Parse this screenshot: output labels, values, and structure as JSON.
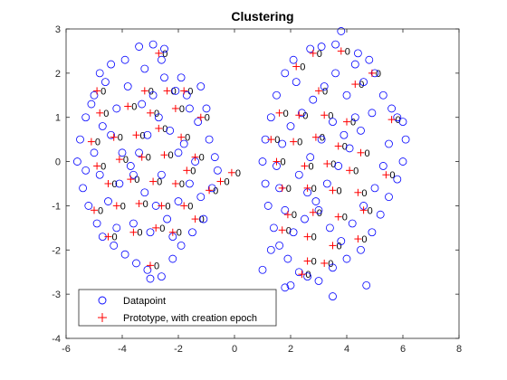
{
  "chart_data": {
    "type": "scatter",
    "title": "Clustering",
    "xlabel": "",
    "ylabel": "",
    "xlim": [
      -6,
      8
    ],
    "ylim": [
      -4,
      3
    ],
    "x_ticks": [
      "-6",
      "-4",
      "-2",
      "0",
      "2",
      "4",
      "6",
      "8"
    ],
    "y_ticks": [
      "-4",
      "-3",
      "-2",
      "-1",
      "0",
      "1",
      "2",
      "3"
    ],
    "grid": false,
    "legend_position": "bottom-left",
    "colors": {
      "datapoint": "#0000ff",
      "prototype": "#ff0000",
      "label": "#000000",
      "axes": "#262626"
    },
    "series": [
      {
        "name": "Datapoint",
        "marker": "circle",
        "points": [
          [
            -3.4,
            2.6
          ],
          [
            -2.9,
            2.65
          ],
          [
            -2.5,
            2.55
          ],
          [
            -2.6,
            2.3
          ],
          [
            -4.8,
            2.0
          ],
          [
            -3.2,
            2.1
          ],
          [
            -1.9,
            1.9
          ],
          [
            -1.7,
            1.5
          ],
          [
            -1.2,
            1.7
          ],
          [
            -4.6,
            1.8
          ],
          [
            -5.0,
            1.5
          ],
          [
            -5.3,
            1.0
          ],
          [
            -5.5,
            0.5
          ],
          [
            -5.6,
            0.0
          ],
          [
            -5.4,
            -0.6
          ],
          [
            -5.2,
            -1.0
          ],
          [
            -4.9,
            -1.4
          ],
          [
            -4.7,
            -1.7
          ],
          [
            -4.3,
            -1.9
          ],
          [
            -3.9,
            -2.1
          ],
          [
            -3.5,
            -2.3
          ],
          [
            -3.1,
            -2.45
          ],
          [
            -2.6,
            -2.6
          ],
          [
            -3.0,
            -2.65
          ],
          [
            -2.2,
            -2.2
          ],
          [
            -1.9,
            -1.9
          ],
          [
            -1.5,
            -1.6
          ],
          [
            -1.1,
            -1.3
          ],
          [
            -0.8,
            -0.6
          ],
          [
            -0.6,
            -0.2
          ],
          [
            -0.9,
            0.5
          ],
          [
            -1.3,
            0.9
          ],
          [
            -1.6,
            1.2
          ],
          [
            -2.1,
            1.6
          ],
          [
            -2.5,
            1.9
          ],
          [
            -3.8,
            1.7
          ],
          [
            -4.2,
            1.2
          ],
          [
            -4.4,
            0.6
          ],
          [
            -4.0,
            0.2
          ],
          [
            -3.6,
            -0.3
          ],
          [
            -3.2,
            -0.7
          ],
          [
            -2.8,
            -1.0
          ],
          [
            -2.4,
            -1.3
          ],
          [
            -2.0,
            -0.9
          ],
          [
            -1.6,
            -0.5
          ],
          [
            -1.4,
            0.0
          ],
          [
            -1.8,
            0.4
          ],
          [
            -2.3,
            0.7
          ],
          [
            -2.7,
            1.0
          ],
          [
            -3.1,
            0.6
          ],
          [
            -3.4,
            0.2
          ],
          [
            -3.7,
            -0.1
          ],
          [
            -4.1,
            -0.5
          ],
          [
            -4.5,
            -0.9
          ],
          [
            -4.8,
            -0.3
          ],
          [
            -5.0,
            0.2
          ],
          [
            -4.7,
            0.8
          ],
          [
            -3.3,
            1.3
          ],
          [
            -2.9,
            1.5
          ],
          [
            -2.0,
            0.2
          ],
          [
            -2.6,
            -0.3
          ],
          [
            -3.0,
            -1.6
          ],
          [
            -3.6,
            -1.4
          ],
          [
            -4.2,
            -1.5
          ],
          [
            -2.2,
            -1.7
          ],
          [
            -1.2,
            -0.8
          ],
          [
            -0.7,
            0.1
          ],
          [
            -1.0,
            1.2
          ],
          [
            -3.9,
            2.3
          ],
          [
            -4.4,
            2.2
          ],
          [
            -5.1,
            1.3
          ],
          [
            -5.3,
            -0.2
          ],
          [
            2.7,
            2.55
          ],
          [
            3.1,
            2.6
          ],
          [
            3.6,
            2.65
          ],
          [
            3.8,
            2.95
          ],
          [
            4.4,
            2.45
          ],
          [
            4.8,
            2.3
          ],
          [
            5.0,
            2.0
          ],
          [
            4.6,
            1.8
          ],
          [
            2.1,
            2.3
          ],
          [
            1.8,
            2.0
          ],
          [
            1.5,
            1.5
          ],
          [
            1.3,
            1.0
          ],
          [
            1.1,
            0.5
          ],
          [
            1.0,
            0.0
          ],
          [
            1.1,
            -0.5
          ],
          [
            1.2,
            -1.0
          ],
          [
            1.4,
            -1.5
          ],
          [
            1.6,
            -1.9
          ],
          [
            1.9,
            -2.2
          ],
          [
            2.3,
            -2.5
          ],
          [
            2.6,
            -2.6
          ],
          [
            2.0,
            -2.8
          ],
          [
            3.0,
            -2.7
          ],
          [
            3.5,
            -2.4
          ],
          [
            4.0,
            -2.2
          ],
          [
            4.5,
            -2.0
          ],
          [
            4.9,
            -1.6
          ],
          [
            5.2,
            -1.2
          ],
          [
            5.5,
            -0.8
          ],
          [
            5.8,
            -0.4
          ],
          [
            6.0,
            0.0
          ],
          [
            6.1,
            0.5
          ],
          [
            6.0,
            0.9
          ],
          [
            5.6,
            1.2
          ],
          [
            5.3,
            1.5
          ],
          [
            4.9,
            1.1
          ],
          [
            4.5,
            0.7
          ],
          [
            4.1,
            0.3
          ],
          [
            3.7,
            -0.1
          ],
          [
            3.3,
            -0.5
          ],
          [
            2.9,
            -0.9
          ],
          [
            2.5,
            -1.3
          ],
          [
            2.1,
            -1.6
          ],
          [
            1.8,
            -1.1
          ],
          [
            1.6,
            -0.6
          ],
          [
            1.5,
            -0.1
          ],
          [
            1.7,
            0.4
          ],
          [
            2.0,
            0.8
          ],
          [
            2.4,
            1.1
          ],
          [
            2.8,
            1.4
          ],
          [
            3.2,
            1.7
          ],
          [
            3.6,
            2.0
          ],
          [
            4.0,
            1.5
          ],
          [
            4.3,
            1.0
          ],
          [
            3.9,
            0.6
          ],
          [
            3.5,
            0.9
          ],
          [
            3.1,
            0.5
          ],
          [
            2.7,
            0.1
          ],
          [
            2.3,
            -0.3
          ],
          [
            2.6,
            -0.7
          ],
          [
            3.0,
            -1.1
          ],
          [
            3.4,
            -1.5
          ],
          [
            3.8,
            -1.8
          ],
          [
            4.2,
            -1.4
          ],
          [
            4.6,
            -1.0
          ],
          [
            5.0,
            -0.6
          ],
          [
            5.3,
            -0.1
          ],
          [
            5.5,
            0.4
          ],
          [
            3.5,
            -3.05
          ],
          [
            4.7,
            -2.8
          ],
          [
            1.0,
            -2.45
          ],
          [
            1.8,
            -2.85
          ],
          [
            2.2,
            1.8
          ],
          [
            4.3,
            2.2
          ],
          [
            5.8,
            1.0
          ],
          [
            1.3,
            -2.0
          ]
        ]
      },
      {
        "name": "Prototype, with creation epoch",
        "marker": "plus",
        "points": [
          [
            -2.7,
            2.45
          ],
          [
            -1.8,
            1.6
          ],
          [
            -2.4,
            1.6
          ],
          [
            -3.2,
            1.6
          ],
          [
            -4.9,
            1.6
          ],
          [
            -4.8,
            1.1
          ],
          [
            -3.8,
            1.25
          ],
          [
            -3.0,
            1.1
          ],
          [
            -2.1,
            1.2
          ],
          [
            -1.2,
            1.0
          ],
          [
            -5.1,
            0.45
          ],
          [
            -4.3,
            0.55
          ],
          [
            -3.5,
            0.6
          ],
          [
            -2.7,
            0.75
          ],
          [
            -1.9,
            0.55
          ],
          [
            -1.4,
            0.1
          ],
          [
            -4.9,
            -0.1
          ],
          [
            -4.1,
            0.05
          ],
          [
            -3.3,
            0.1
          ],
          [
            -2.5,
            0.15
          ],
          [
            -1.7,
            -0.2
          ],
          [
            -4.5,
            -0.5
          ],
          [
            -3.7,
            -0.4
          ],
          [
            -2.9,
            -0.45
          ],
          [
            -2.1,
            -0.5
          ],
          [
            -0.9,
            -0.65
          ],
          [
            -0.5,
            -0.45
          ],
          [
            -0.1,
            -0.25
          ],
          [
            -5.0,
            -1.1
          ],
          [
            -4.2,
            -1.0
          ],
          [
            -3.4,
            -0.95
          ],
          [
            -2.6,
            -1.0
          ],
          [
            -1.8,
            -1.0
          ],
          [
            -4.5,
            -1.7
          ],
          [
            -3.6,
            -1.6
          ],
          [
            -2.8,
            -1.5
          ],
          [
            -2.2,
            -1.6
          ],
          [
            -1.4,
            -1.3
          ],
          [
            -3.0,
            -2.35
          ],
          [
            2.8,
            2.45
          ],
          [
            3.8,
            2.5
          ],
          [
            2.2,
            2.15
          ],
          [
            4.9,
            2.0
          ],
          [
            3.0,
            1.6
          ],
          [
            4.3,
            1.75
          ],
          [
            1.6,
            1.1
          ],
          [
            2.3,
            1.05
          ],
          [
            3.2,
            1.05
          ],
          [
            4.0,
            0.9
          ],
          [
            5.6,
            0.95
          ],
          [
            1.3,
            0.5
          ],
          [
            2.1,
            0.45
          ],
          [
            2.9,
            0.55
          ],
          [
            3.7,
            0.35
          ],
          [
            4.5,
            0.2
          ],
          [
            1.5,
            0.0
          ],
          [
            2.5,
            -0.1
          ],
          [
            3.3,
            -0.05
          ],
          [
            4.1,
            -0.2
          ],
          [
            5.4,
            -0.3
          ],
          [
            1.7,
            -0.6
          ],
          [
            2.6,
            -0.6
          ],
          [
            3.5,
            -0.65
          ],
          [
            4.4,
            -0.7
          ],
          [
            1.9,
            -1.2
          ],
          [
            2.8,
            -1.15
          ],
          [
            3.7,
            -1.25
          ],
          [
            4.6,
            -1.1
          ],
          [
            1.7,
            -1.55
          ],
          [
            2.6,
            -1.7
          ],
          [
            3.5,
            -1.9
          ],
          [
            4.4,
            -1.75
          ],
          [
            2.6,
            -2.25
          ],
          [
            3.2,
            -2.3
          ],
          [
            2.4,
            -2.55
          ]
        ]
      }
    ],
    "legend": [
      {
        "label": "Datapoint",
        "marker": "circle"
      },
      {
        "label": "Prototype, with creation epoch",
        "marker": "plus"
      }
    ],
    "epoch_label_text": "0"
  }
}
